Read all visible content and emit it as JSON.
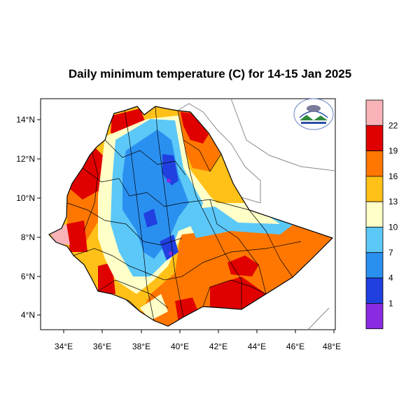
{
  "title": "Daily minimum temperature (C) for 14-15 Jan 2025",
  "map": {
    "x_ticks": [
      "34°E",
      "36°E",
      "38°E",
      "40°E",
      "42°E",
      "44°E",
      "46°E",
      "48°E"
    ],
    "y_ticks": [
      "14°N",
      "12°N",
      "10°N",
      "8°N",
      "6°N",
      "4°N"
    ]
  },
  "colorbar": {
    "labels": [
      "22",
      "19",
      "16",
      "13",
      "10",
      "7",
      "4",
      "1"
    ],
    "colors": [
      "#f9b3b8",
      "#e00000",
      "#ff7700",
      "#ffc018",
      "#ffffc8",
      "#5cc8f8",
      "#2a90f0",
      "#2040e0",
      "#8a2be2"
    ]
  },
  "legend_colors": {
    "lt1": "#8a2be2",
    "c1_4": "#2040e0",
    "c4_7": "#2a90f0",
    "c7_10": "#5cc8f8",
    "c10_13": "#ffffc8",
    "c13_16": "#ffc018",
    "c16_19": "#ff7700",
    "c19_22": "#e00000",
    "gt22": "#f9b3b8"
  }
}
